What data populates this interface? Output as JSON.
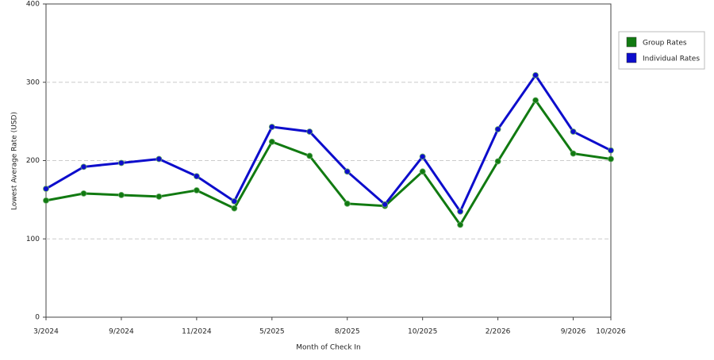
{
  "chart_data": {
    "type": "line",
    "x_label": "Month of Check In",
    "y_label": "Lowest Average Rate (USD)",
    "categories": [
      "3/2024",
      null,
      "9/2024",
      null,
      "11/2024",
      null,
      "5/2025",
      null,
      "8/2025",
      null,
      "10/2025",
      null,
      "2/2026",
      null,
      "9/2026",
      "10/2026"
    ],
    "series": [
      {
        "name": "Group Rates",
        "color": "#117a11",
        "values": [
          149,
          158,
          156,
          154,
          162,
          139,
          224,
          206,
          145,
          142,
          186,
          118,
          199,
          277,
          209,
          202
        ]
      },
      {
        "name": "Individual Rates",
        "color": "#0d0dcc",
        "values": [
          164,
          192,
          197,
          202,
          180,
          148,
          243,
          237,
          186,
          144,
          205,
          135,
          240,
          309,
          237,
          213
        ]
      }
    ],
    "ylim": [
      0,
      400
    ],
    "yticks": [
      0,
      100,
      200,
      300,
      400
    ],
    "grid": true,
    "legend": "right"
  }
}
